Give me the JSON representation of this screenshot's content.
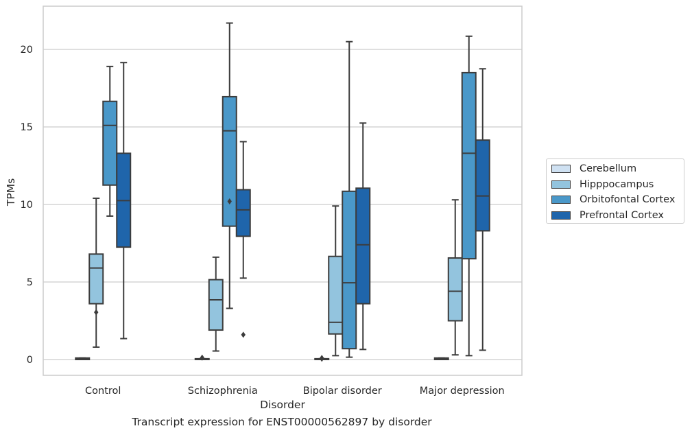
{
  "chart_data": {
    "type": "box",
    "xlabel": "Disorder",
    "ylabel": "TPMs",
    "caption": "Transcript expression for ENST00000562897 by disorder",
    "ylim": [
      -1.05,
      22.6
    ],
    "yticks": [
      0,
      5,
      10,
      15,
      20
    ],
    "categories": [
      "Control",
      "Schizophrenia",
      "Bipolar disorder",
      "Major depression"
    ],
    "grid": "horizontal",
    "legend_position": "right",
    "series": [
      {
        "name": "Cerebellum",
        "color": "#cfe1f2",
        "boxes": [
          {
            "whisker_low": 0.0,
            "q1": 0.0,
            "median": 0.05,
            "q3": 0.1,
            "whisker_high": 0.1,
            "outliers": []
          },
          {
            "whisker_low": 0.0,
            "q1": 0.0,
            "median": 0.0,
            "q3": 0.05,
            "whisker_high": 0.05,
            "outliers": [
              0.12
            ]
          },
          {
            "whisker_low": 0.0,
            "q1": 0.0,
            "median": 0.0,
            "q3": 0.05,
            "whisker_high": 0.05,
            "outliers": [
              0.1,
              0.05
            ]
          },
          {
            "whisker_low": 0.0,
            "q1": 0.0,
            "median": 0.05,
            "q3": 0.1,
            "whisker_high": 0.1,
            "outliers": []
          }
        ]
      },
      {
        "name": "Hipppocampus",
        "color": "#93c4de",
        "boxes": [
          {
            "whisker_low": 0.8,
            "q1": 3.6,
            "median": 5.9,
            "q3": 6.8,
            "whisker_high": 10.4,
            "outliers": [
              3.05
            ]
          },
          {
            "whisker_low": 0.55,
            "q1": 1.9,
            "median": 3.85,
            "q3": 5.15,
            "whisker_high": 6.6,
            "outliers": []
          },
          {
            "whisker_low": 0.25,
            "q1": 1.65,
            "median": 2.4,
            "q3": 6.65,
            "whisker_high": 9.9,
            "outliers": []
          },
          {
            "whisker_low": 0.3,
            "q1": 2.5,
            "median": 4.4,
            "q3": 6.55,
            "whisker_high": 10.3,
            "outliers": []
          }
        ]
      },
      {
        "name": "Orbitofontal Cortex",
        "color": "#4a98c9",
        "boxes": [
          {
            "whisker_low": 9.25,
            "q1": 11.25,
            "median": 15.1,
            "q3": 16.65,
            "whisker_high": 18.9,
            "outliers": []
          },
          {
            "whisker_low": 3.3,
            "q1": 8.6,
            "median": 14.75,
            "q3": 16.95,
            "whisker_high": 21.7,
            "outliers": [
              10.2
            ]
          },
          {
            "whisker_low": 0.15,
            "q1": 0.7,
            "median": 4.95,
            "q3": 10.85,
            "whisker_high": 20.5,
            "outliers": []
          },
          {
            "whisker_low": 0.25,
            "q1": 6.5,
            "median": 13.3,
            "q3": 18.5,
            "whisker_high": 20.85,
            "outliers": []
          }
        ]
      },
      {
        "name": "Prefrontal Cortex",
        "color": "#1f65ab",
        "boxes": [
          {
            "whisker_low": 1.35,
            "q1": 7.25,
            "median": 10.25,
            "q3": 13.3,
            "whisker_high": 19.15,
            "outliers": []
          },
          {
            "whisker_low": 5.25,
            "q1": 7.95,
            "median": 9.65,
            "q3": 10.95,
            "whisker_high": 14.05,
            "outliers": [
              1.6
            ]
          },
          {
            "whisker_low": 0.65,
            "q1": 3.6,
            "median": 7.4,
            "q3": 11.05,
            "whisker_high": 15.25,
            "outliers": []
          },
          {
            "whisker_low": 0.6,
            "q1": 8.3,
            "median": 10.55,
            "q3": 14.15,
            "whisker_high": 18.75,
            "outliers": []
          }
        ]
      }
    ]
  }
}
